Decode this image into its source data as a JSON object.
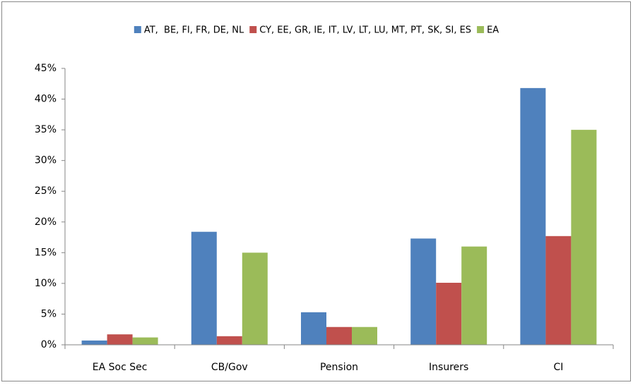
{
  "chart_data": {
    "type": "bar",
    "categories": [
      "EA Soc Sec",
      "CB/Gov",
      "Pension",
      "Insurers",
      "CI"
    ],
    "series": [
      {
        "name": "AT,  BE, FI, FR, DE, NL",
        "color": "#4f81bd",
        "values": [
          0.7,
          18.4,
          5.3,
          17.3,
          41.8
        ]
      },
      {
        "name": "CY, EE, GR, IE, IT, LV, LT, LU, MT, PT, SK, SI, ES",
        "color": "#c0504d",
        "values": [
          1.7,
          1.4,
          2.9,
          10.1,
          17.7
        ]
      },
      {
        "name": "EA",
        "color": "#9bbb59",
        "values": [
          1.2,
          15.0,
          2.9,
          16.0,
          35.0
        ]
      }
    ],
    "ylim": [
      0,
      45
    ],
    "yticks": [
      {
        "value": 0,
        "label": "0%"
      },
      {
        "value": 5,
        "label": "5%"
      },
      {
        "value": 10,
        "label": "10%"
      },
      {
        "value": 15,
        "label": "15%"
      },
      {
        "value": 20,
        "label": "20%"
      },
      {
        "value": 25,
        "label": "25%"
      },
      {
        "value": 30,
        "label": "30%"
      },
      {
        "value": 35,
        "label": "35%"
      },
      {
        "value": 40,
        "label": "40%"
      },
      {
        "value": 45,
        "label": "45%"
      }
    ],
    "grid": false,
    "legend": "top"
  }
}
